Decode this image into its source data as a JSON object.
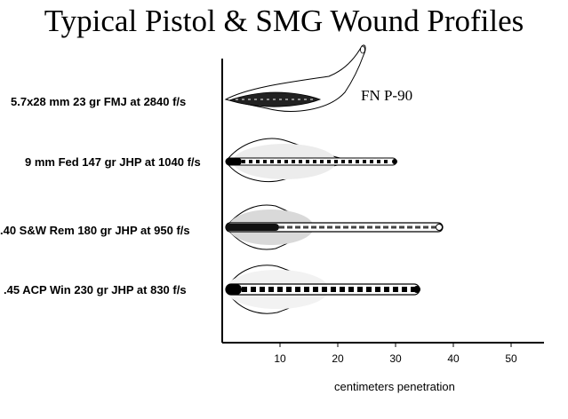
{
  "title": "Typical Pistol & SMG Wound Profiles",
  "annotation": "FN P-90",
  "x_axis": {
    "label": "centimeters penetration",
    "ticks": [
      10,
      20,
      30,
      40,
      50
    ],
    "range": [
      0,
      55
    ]
  },
  "rows": [
    {
      "label": "5.7x28 mm 23 gr FMJ at 2840 f/s",
      "penetration_cm": 24
    },
    {
      "label": "9 mm Fed 147 gr JHP at 1040 f/s",
      "penetration_cm": 30
    },
    {
      "label": ".40 S&W Rem 180 gr JHP at 950 f/s",
      "penetration_cm": 38
    },
    {
      "label": ".45 ACP Win 230 gr JHP at 830 f/s",
      "penetration_cm": 34
    }
  ]
}
